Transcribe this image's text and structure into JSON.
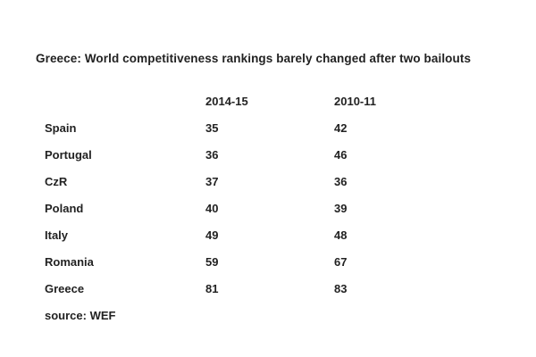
{
  "chart_data": {
    "type": "table",
    "title": "Greece: World competitiveness rankings barely changed after two bailouts",
    "columns": [
      "2014-15",
      "2010-11"
    ],
    "rows": [
      {
        "country": "Spain",
        "values": [
          "35",
          "42"
        ]
      },
      {
        "country": "Portugal",
        "values": [
          "36",
          "46"
        ]
      },
      {
        "country": "CzR",
        "values": [
          "37",
          "36"
        ]
      },
      {
        "country": "Poland",
        "values": [
          "40",
          "39"
        ]
      },
      {
        "country": "Italy",
        "values": [
          "49",
          "48"
        ]
      },
      {
        "country": "Romania",
        "values": [
          "59",
          "67"
        ]
      },
      {
        "country": "Greece",
        "values": [
          "81",
          "83"
        ]
      }
    ],
    "source": "source: WEF"
  }
}
